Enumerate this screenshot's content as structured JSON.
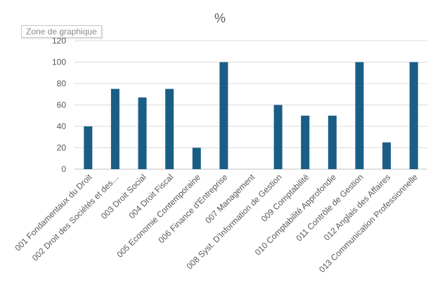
{
  "tooltip": "Zone de graphique",
  "chart_data": {
    "type": "bar",
    "title": "%",
    "categories": [
      "001 Fondamentaux du Droit",
      "002 Droit des Sociétés et des…",
      "003 Droit Social",
      "004 Droit Fiscal",
      "005 Economie Contemporaine",
      "006 Finance d'Entreprise",
      "007 Management",
      "008 Syst. D'Information de Gestion",
      "009 Comptabilité",
      "010 Comptabilité Approfondie",
      "011 Contrôle de Gestion",
      "012 Anglais des Affaires",
      "013 Communication Professionnelle"
    ],
    "values": [
      40,
      75,
      67,
      75,
      20,
      100,
      0,
      60,
      50,
      50,
      100,
      25,
      100
    ],
    "ylim": [
      0,
      120
    ],
    "yticks": [
      0,
      20,
      40,
      60,
      80,
      100,
      120
    ],
    "grid": true,
    "bar_color": "#1a5e86"
  }
}
